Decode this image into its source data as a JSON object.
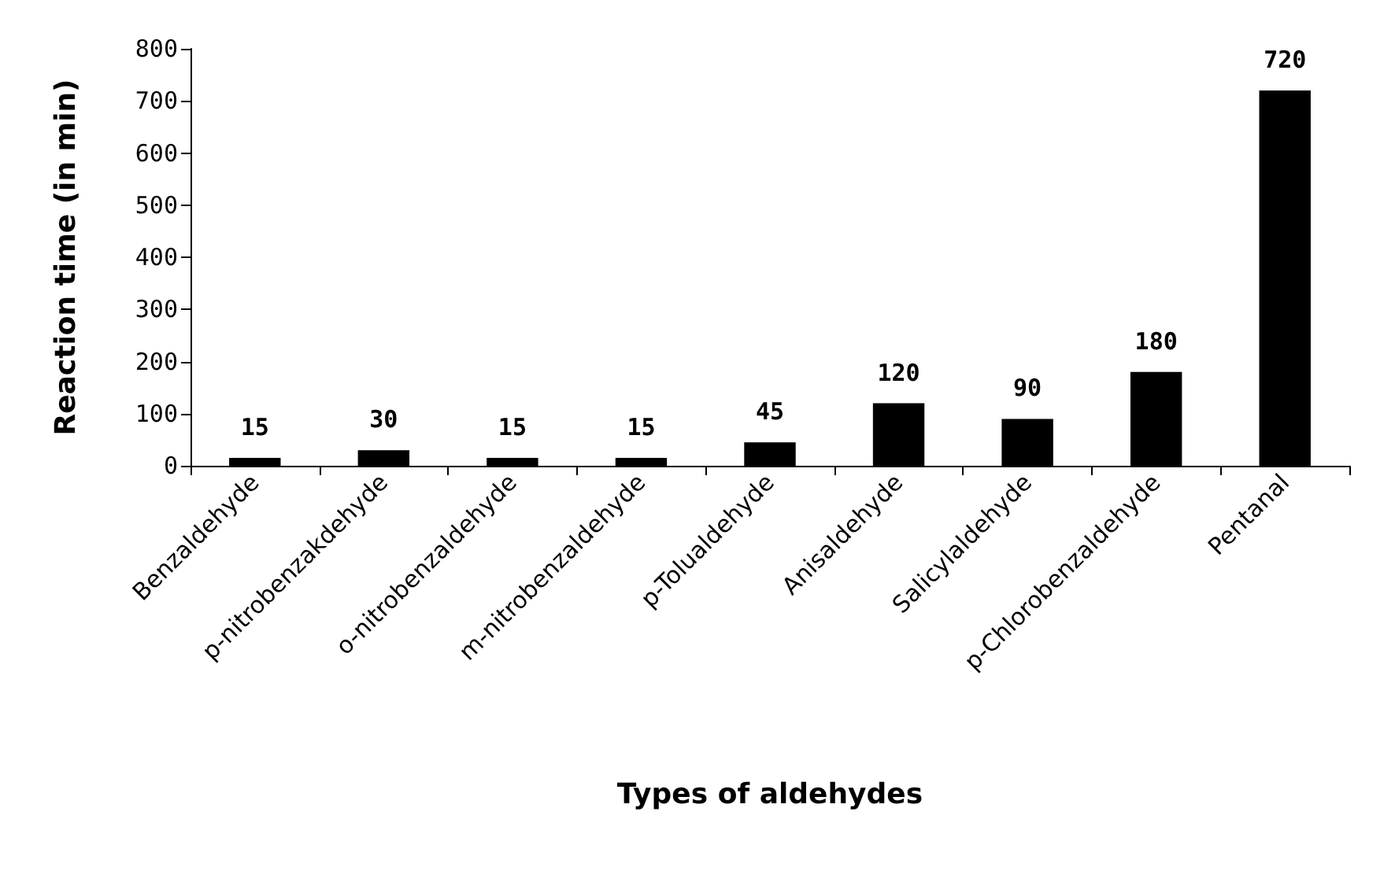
{
  "chart_data": {
    "type": "bar",
    "xlabel": "Types of aldehydes",
    "ylabel": "Reaction time (in min)",
    "categories": [
      "Benzaldehyde",
      "p-nitrobenzakdehyde",
      "o-nitrobenzaldehyde",
      "m-nitrobenzaldehyde",
      "p-Tolualdehyde",
      "Anisaldehyde",
      "Salicylaldehyde",
      "p-Chlorobenzaldehyde",
      "Pentanal"
    ],
    "values": [
      15,
      30,
      15,
      15,
      45,
      120,
      90,
      180,
      720
    ],
    "color": "#000000",
    "ylim": [
      0,
      800
    ],
    "yticks": [
      0,
      100,
      200,
      300,
      400,
      500,
      600,
      700,
      800
    ],
    "grid": false,
    "data_labels": true
  }
}
